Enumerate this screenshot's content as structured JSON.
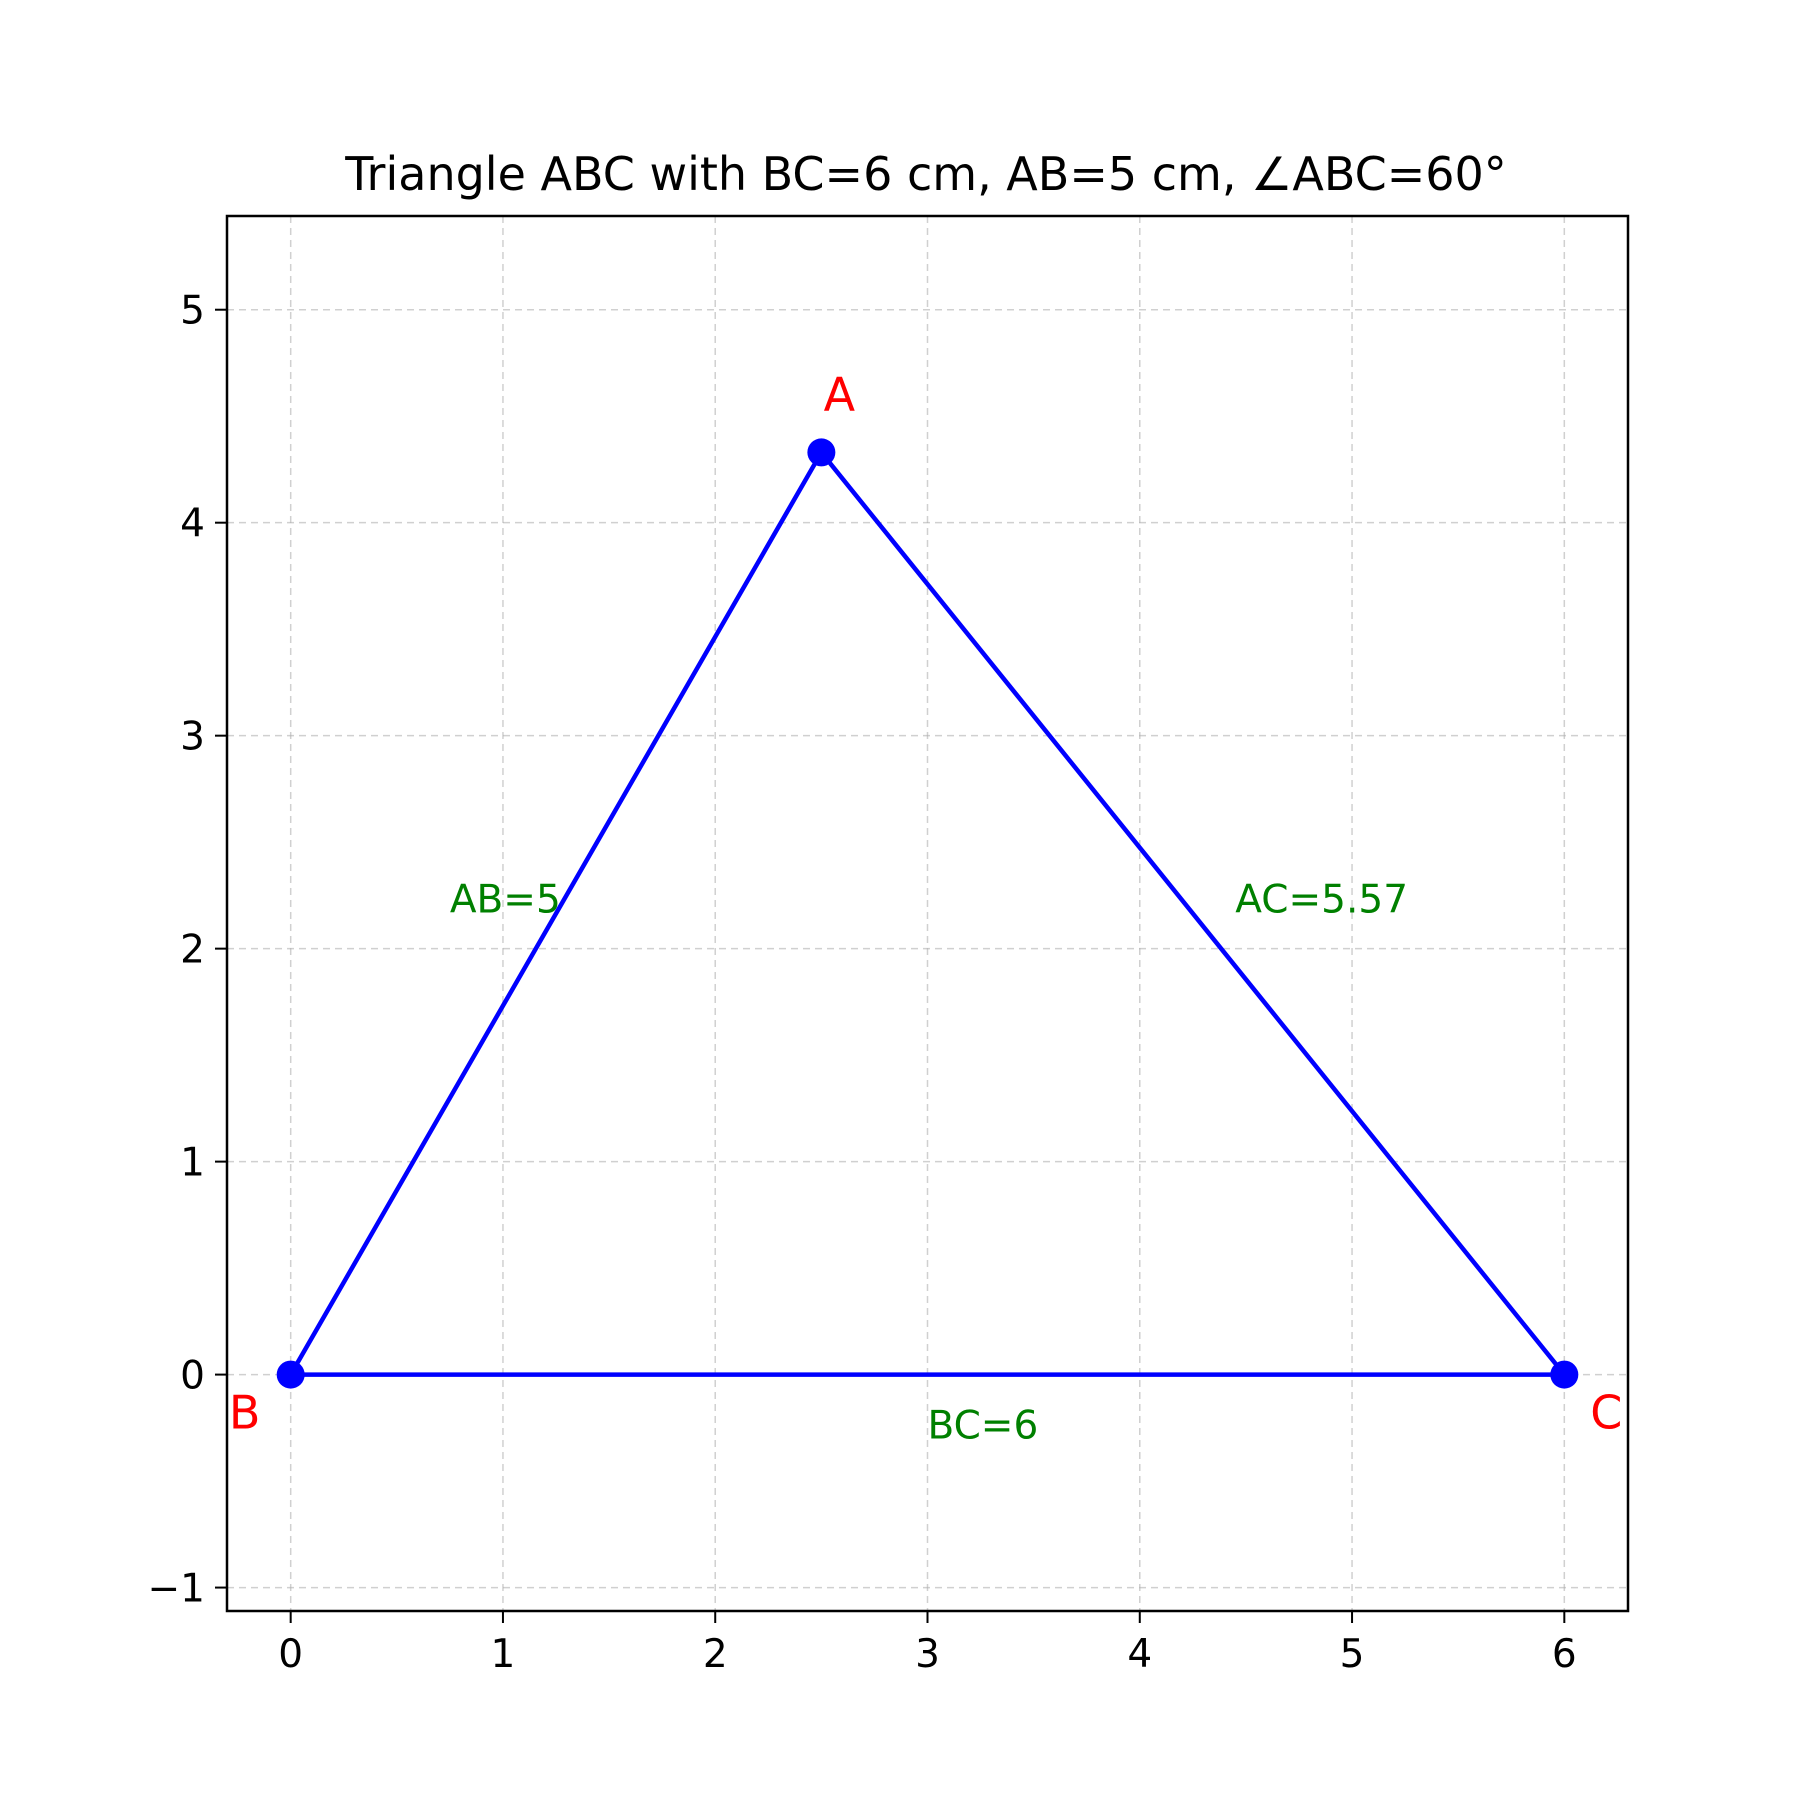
{
  "title": "Triangle ABC with BC=6 cm, AB=5 cm, ∠ABC=60°",
  "colors": {
    "triangle": "#0000ff",
    "vertex_label": "#ff0000",
    "side_label": "#008000",
    "grid": "#b0b0b0",
    "axes": "#000000"
  },
  "chart_data": {
    "type": "scatter",
    "title": "Triangle ABC with BC=6 cm, AB=5 cm, ∠ABC=60°",
    "xlim": [
      -0.3,
      6.3
    ],
    "ylim": [
      -1.11,
      5.44
    ],
    "xticks": [
      0,
      1,
      2,
      3,
      4,
      5,
      6
    ],
    "yticks": [
      -1,
      0,
      1,
      2,
      3,
      4,
      5
    ],
    "xtick_labels": [
      "0",
      "1",
      "2",
      "3",
      "4",
      "5",
      "6"
    ],
    "ytick_labels": [
      "−1",
      "0",
      "1",
      "2",
      "3",
      "4",
      "5"
    ],
    "grid": true,
    "grid_style": "dashed",
    "vertices": [
      {
        "name": "A",
        "x": 2.5,
        "y": 4.33
      },
      {
        "name": "B",
        "x": 0,
        "y": 0
      },
      {
        "name": "C",
        "x": 6,
        "y": 0
      }
    ],
    "edges": [
      [
        "B",
        "A"
      ],
      [
        "A",
        "C"
      ],
      [
        "C",
        "B"
      ]
    ],
    "side_labels": [
      {
        "text": "AB=5",
        "x": 0.75,
        "y": 2.17
      },
      {
        "text": "AC=5.57",
        "x": 4.45,
        "y": 2.17
      },
      {
        "text": "BC=6",
        "x": 3.0,
        "y": -0.3
      }
    ]
  }
}
